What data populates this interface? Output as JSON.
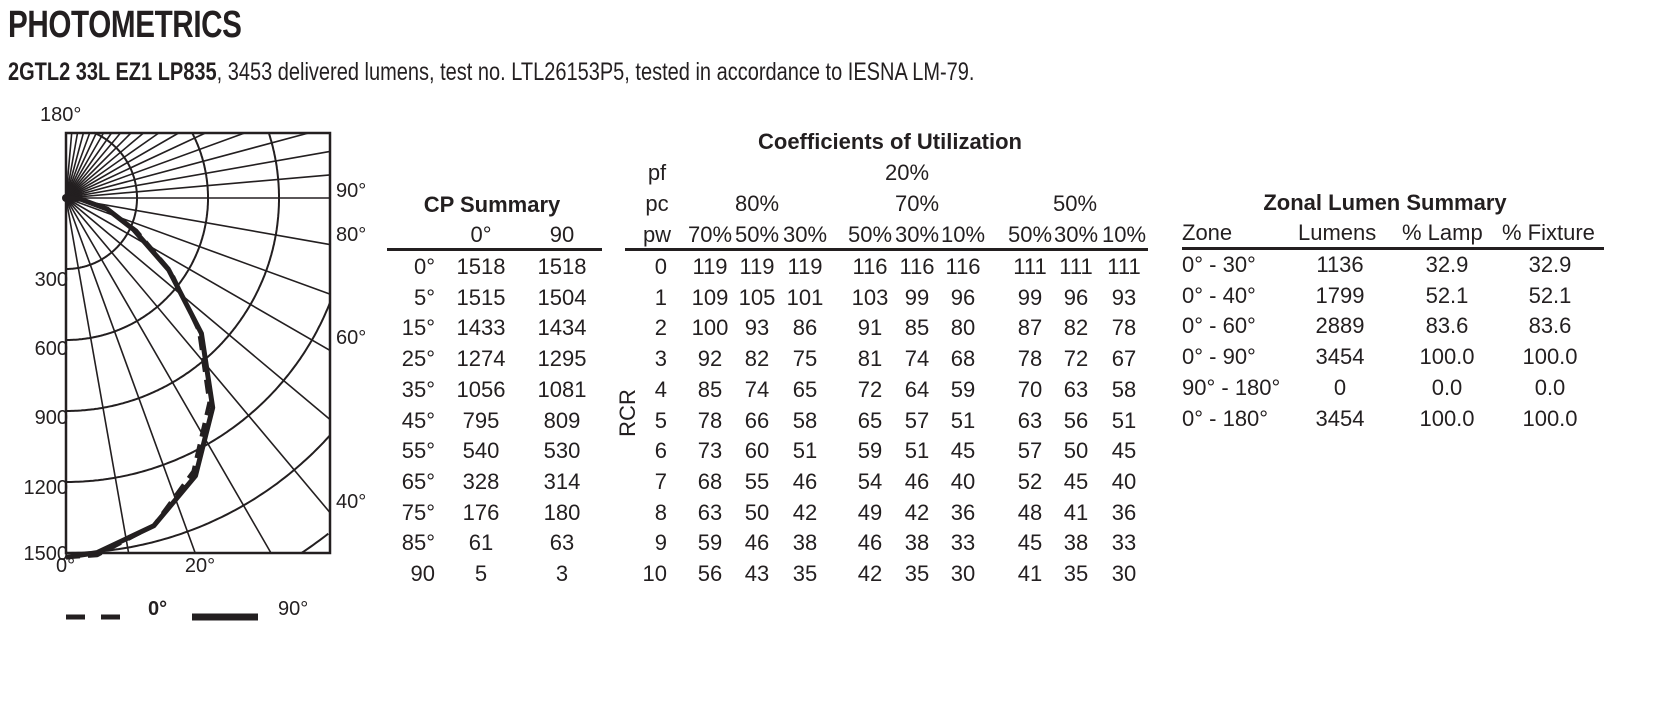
{
  "header": {
    "title": "PHOTOMETRICS",
    "subtitle_bold": "2GTL2 33L EZ1 LP835",
    "subtitle_rest": ", 3453 delivered lumens, test no. LTL26153P5, tested in accordance to IESNA LM-79."
  },
  "chart_data": {
    "type": "polar",
    "radial_ticks": [
      300,
      600,
      900,
      1200,
      1500
    ],
    "radial_tick_labels": [
      "300",
      "600",
      "900",
      "1200",
      "1500"
    ],
    "angle_labels": [
      "180°",
      "90°",
      "80°",
      "60°",
      "40°",
      "0°",
      "20°"
    ],
    "angles": [
      0,
      5,
      15,
      25,
      35,
      45,
      55,
      65,
      75,
      85,
      90
    ],
    "series": [
      {
        "name": "0°",
        "style": "dashed",
        "values": [
          1518,
          1515,
          1433,
          1274,
          1056,
          795,
          540,
          328,
          176,
          61,
          5
        ]
      },
      {
        "name": "90°",
        "style": "solid",
        "values": [
          1518,
          1504,
          1434,
          1295,
          1081,
          809,
          530,
          314,
          180,
          63,
          3
        ]
      }
    ],
    "legend": "bottom",
    "grid": true
  },
  "cp_summary": {
    "title": "CP Summary",
    "columns": [
      "0°",
      "90"
    ],
    "rows": [
      [
        "0°",
        "1518",
        "1518"
      ],
      [
        "5°",
        "1515",
        "1504"
      ],
      [
        "15°",
        "1433",
        "1434"
      ],
      [
        "25°",
        "1274",
        "1295"
      ],
      [
        "35°",
        "1056",
        "1081"
      ],
      [
        "45°",
        "795",
        "809"
      ],
      [
        "55°",
        "540",
        "530"
      ],
      [
        "65°",
        "328",
        "314"
      ],
      [
        "75°",
        "176",
        "180"
      ],
      [
        "85°",
        "61",
        "63"
      ],
      [
        "90",
        "5",
        "3"
      ]
    ]
  },
  "cu": {
    "title": "Coefficients of Utilization",
    "pf_label": "pf",
    "pf_value": "20%",
    "pc_label": "pc",
    "pc_values": [
      "80%",
      "70%",
      "50%"
    ],
    "pw_label": "pw",
    "pw_values": [
      "70%",
      "50%",
      "30%",
      "50%",
      "30%",
      "10%",
      "50%",
      "30%",
      "10%"
    ],
    "rcr_label": "RCR",
    "rows": [
      [
        "0",
        "119",
        "119",
        "119",
        "116",
        "116",
        "116",
        "111",
        "111",
        "111"
      ],
      [
        "1",
        "109",
        "105",
        "101",
        "103",
        "99",
        "96",
        "99",
        "96",
        "93"
      ],
      [
        "2",
        "100",
        "93",
        "86",
        "91",
        "85",
        "80",
        "87",
        "82",
        "78"
      ],
      [
        "3",
        "92",
        "82",
        "75",
        "81",
        "74",
        "68",
        "78",
        "72",
        "67"
      ],
      [
        "4",
        "85",
        "74",
        "65",
        "72",
        "64",
        "59",
        "70",
        "63",
        "58"
      ],
      [
        "5",
        "78",
        "66",
        "58",
        "65",
        "57",
        "51",
        "63",
        "56",
        "51"
      ],
      [
        "6",
        "73",
        "60",
        "51",
        "59",
        "51",
        "45",
        "57",
        "50",
        "45"
      ],
      [
        "7",
        "68",
        "55",
        "46",
        "54",
        "46",
        "40",
        "52",
        "45",
        "40"
      ],
      [
        "8",
        "63",
        "50",
        "42",
        "49",
        "42",
        "36",
        "48",
        "41",
        "36"
      ],
      [
        "9",
        "59",
        "46",
        "38",
        "46",
        "38",
        "33",
        "45",
        "38",
        "33"
      ],
      [
        "10",
        "56",
        "43",
        "35",
        "42",
        "35",
        "30",
        "41",
        "35",
        "30"
      ]
    ]
  },
  "zonal": {
    "title": "Zonal Lumen Summary",
    "columns": [
      "Zone",
      "Lumens",
      "% Lamp",
      "% Fixture"
    ],
    "rows": [
      [
        "0° - 30°",
        "1136",
        "32.9",
        "32.9"
      ],
      [
        "0° - 40°",
        "1799",
        "52.1",
        "52.1"
      ],
      [
        "0° - 60°",
        "2889",
        "83.6",
        "83.6"
      ],
      [
        "0° - 90°",
        "3454",
        "100.0",
        "100.0"
      ],
      [
        "90° - 180°",
        "0",
        "0.0",
        "0.0"
      ],
      [
        "0° - 180°",
        "3454",
        "100.0",
        "100.0"
      ]
    ]
  }
}
